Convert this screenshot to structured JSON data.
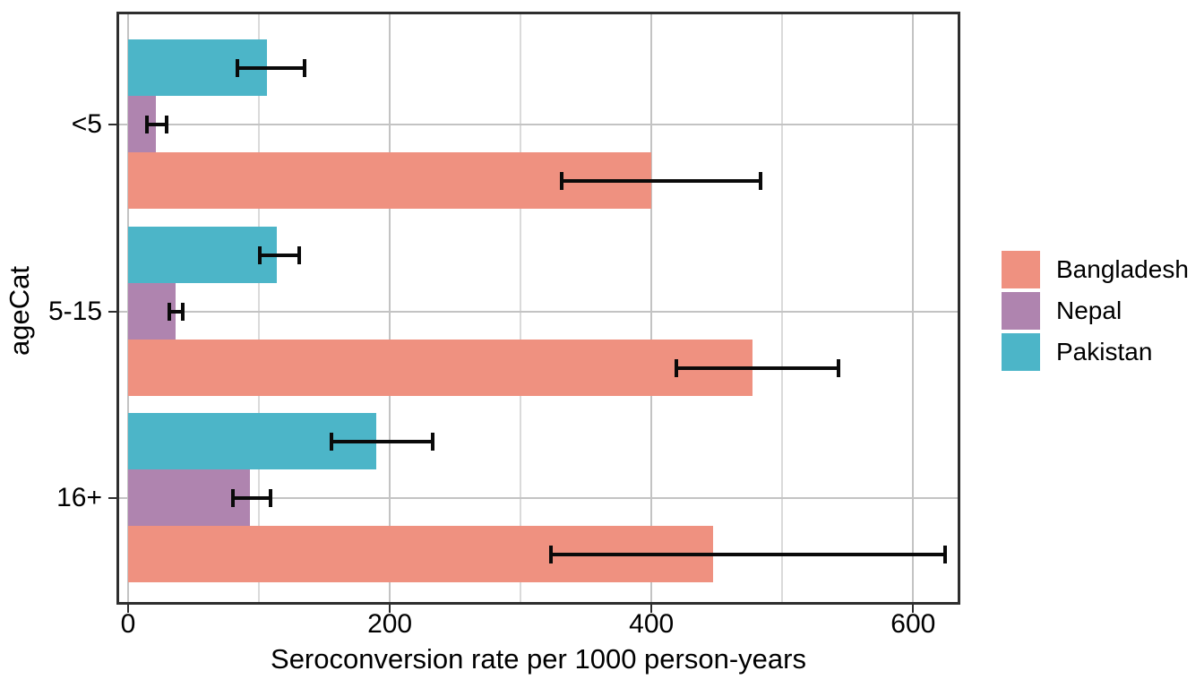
{
  "chart_data": {
    "type": "bar",
    "orientation": "horizontal",
    "title": "",
    "xlabel": "Seroconversion rate per 1000 person-years",
    "ylabel": "ageCat",
    "categories": [
      "<5",
      "5-15",
      "16+"
    ],
    "series": [
      {
        "name": "Bangladesh",
        "color": "#EF9180",
        "values": [
          400,
          477,
          447
        ],
        "ci_low": [
          330,
          418,
          322
        ],
        "ci_high": [
          485,
          544,
          626
        ]
      },
      {
        "name": "Nepal",
        "color": "#AF84AF",
        "values": [
          21,
          36,
          93
        ],
        "ci_low": [
          13,
          30,
          79
        ],
        "ci_high": [
          31,
          43,
          110
        ]
      },
      {
        "name": "Pakistan",
        "color": "#4CB5C8",
        "values": [
          106,
          114,
          190
        ],
        "ci_low": [
          82,
          99,
          154
        ],
        "ci_high": [
          136,
          132,
          234
        ]
      }
    ],
    "bar_order_top_to_bottom": [
      "Pakistan",
      "Nepal",
      "Bangladesh"
    ],
    "error_bars": true,
    "x_ticks": [
      0,
      200,
      400,
      600
    ],
    "x_minor_gridlines": [
      100,
      300,
      500
    ],
    "xlim": [
      0,
      636
    ],
    "grid": true,
    "legend_position": "right",
    "legend_items": [
      "Bangladesh",
      "Nepal",
      "Pakistan"
    ],
    "colors": {
      "grid_major": "#c3c3c3",
      "grid_minor": "#dadada",
      "panel_border": "#2e2e2e",
      "error_bar": "#0a0a0a",
      "text": "#000000",
      "background": "#ffffff"
    }
  }
}
